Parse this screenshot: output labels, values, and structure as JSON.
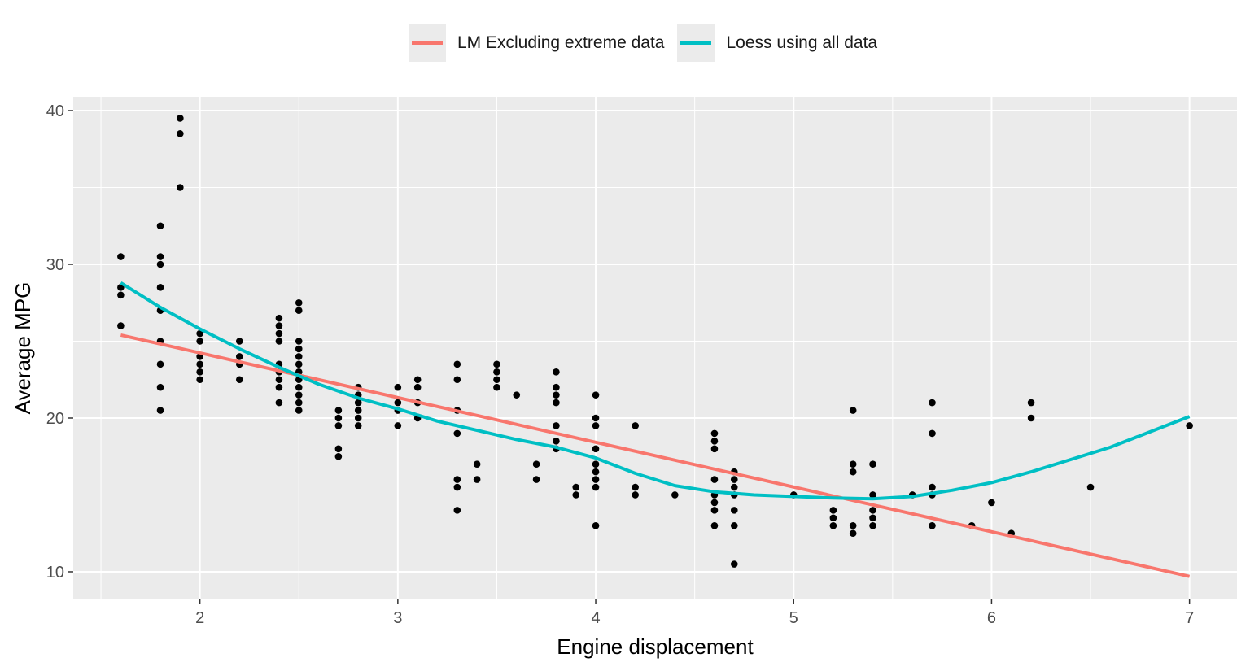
{
  "chart_data": {
    "type": "scatter",
    "xlabel": "Engine displacement",
    "ylabel": "Average MPG",
    "xlim": [
      1.36,
      7.24
    ],
    "ylim": [
      8.2,
      40.9
    ],
    "x_ticks": [
      2,
      3,
      4,
      5,
      6,
      7
    ],
    "y_ticks": [
      10,
      20,
      30,
      40
    ],
    "grid": true,
    "legend_position": "top",
    "points": [
      [
        1.6,
        30.5
      ],
      [
        1.6,
        28.5
      ],
      [
        1.6,
        28
      ],
      [
        1.6,
        26
      ],
      [
        1.8,
        32.5
      ],
      [
        1.8,
        30.5
      ],
      [
        1.8,
        30
      ],
      [
        1.8,
        28.5
      ],
      [
        1.8,
        27
      ],
      [
        1.8,
        25
      ],
      [
        1.8,
        23.5
      ],
      [
        1.8,
        22
      ],
      [
        1.8,
        20.5
      ],
      [
        1.9,
        39.5
      ],
      [
        1.9,
        38.5
      ],
      [
        1.9,
        35
      ],
      [
        2.0,
        25.5
      ],
      [
        2.0,
        25
      ],
      [
        2.0,
        24
      ],
      [
        2.0,
        23.5
      ],
      [
        2.0,
        23
      ],
      [
        2.0,
        22.5
      ],
      [
        2.2,
        25
      ],
      [
        2.2,
        24
      ],
      [
        2.2,
        23.5
      ],
      [
        2.2,
        22.5
      ],
      [
        2.4,
        26.5
      ],
      [
        2.4,
        26
      ],
      [
        2.4,
        25.5
      ],
      [
        2.4,
        25
      ],
      [
        2.4,
        23.5
      ],
      [
        2.4,
        23
      ],
      [
        2.4,
        22.5
      ],
      [
        2.4,
        22
      ],
      [
        2.4,
        21
      ],
      [
        2.5,
        27.5
      ],
      [
        2.5,
        27
      ],
      [
        2.5,
        25
      ],
      [
        2.5,
        24.5
      ],
      [
        2.5,
        24
      ],
      [
        2.5,
        23.5
      ],
      [
        2.5,
        23
      ],
      [
        2.5,
        22.5
      ],
      [
        2.5,
        22
      ],
      [
        2.5,
        21.5
      ],
      [
        2.5,
        21
      ],
      [
        2.5,
        20.5
      ],
      [
        2.7,
        20.5
      ],
      [
        2.7,
        20
      ],
      [
        2.7,
        19.5
      ],
      [
        2.7,
        18
      ],
      [
        2.7,
        17.5
      ],
      [
        2.8,
        22
      ],
      [
        2.8,
        21.5
      ],
      [
        2.8,
        21
      ],
      [
        2.8,
        20.5
      ],
      [
        2.8,
        20
      ],
      [
        2.8,
        19.5
      ],
      [
        3.0,
        22
      ],
      [
        3.0,
        21
      ],
      [
        3.0,
        20.5
      ],
      [
        3.0,
        19.5
      ],
      [
        3.1,
        22.5
      ],
      [
        3.1,
        22
      ],
      [
        3.1,
        21
      ],
      [
        3.1,
        20
      ],
      [
        3.3,
        23.5
      ],
      [
        3.3,
        22.5
      ],
      [
        3.3,
        20.5
      ],
      [
        3.3,
        19
      ],
      [
        3.3,
        16
      ],
      [
        3.3,
        15.5
      ],
      [
        3.3,
        14
      ],
      [
        3.4,
        17
      ],
      [
        3.4,
        16
      ],
      [
        3.5,
        23.5
      ],
      [
        3.5,
        23
      ],
      [
        3.5,
        22.5
      ],
      [
        3.5,
        22
      ],
      [
        3.6,
        21.5
      ],
      [
        3.7,
        17
      ],
      [
        3.7,
        16
      ],
      [
        3.8,
        23
      ],
      [
        3.8,
        22
      ],
      [
        3.8,
        21.5
      ],
      [
        3.8,
        21
      ],
      [
        3.8,
        19.5
      ],
      [
        3.8,
        18.5
      ],
      [
        3.8,
        18
      ],
      [
        3.9,
        15.5
      ],
      [
        3.9,
        15
      ],
      [
        4.0,
        21.5
      ],
      [
        4.0,
        20
      ],
      [
        4.0,
        19.5
      ],
      [
        4.0,
        18
      ],
      [
        4.0,
        17
      ],
      [
        4.0,
        16.5
      ],
      [
        4.0,
        16
      ],
      [
        4.0,
        15.5
      ],
      [
        4.0,
        13
      ],
      [
        4.2,
        19.5
      ],
      [
        4.2,
        15.5
      ],
      [
        4.2,
        15
      ],
      [
        4.4,
        15
      ],
      [
        4.6,
        19
      ],
      [
        4.6,
        18.5
      ],
      [
        4.6,
        18
      ],
      [
        4.6,
        16
      ],
      [
        4.6,
        15
      ],
      [
        4.6,
        14.5
      ],
      [
        4.6,
        14
      ],
      [
        4.6,
        13
      ],
      [
        4.7,
        16.5
      ],
      [
        4.7,
        16
      ],
      [
        4.7,
        15.5
      ],
      [
        4.7,
        15
      ],
      [
        4.7,
        14
      ],
      [
        4.7,
        13
      ],
      [
        4.7,
        10.5
      ],
      [
        5.0,
        15
      ],
      [
        5.2,
        14
      ],
      [
        5.2,
        13.5
      ],
      [
        5.2,
        13
      ],
      [
        5.3,
        20.5
      ],
      [
        5.3,
        17
      ],
      [
        5.3,
        16.5
      ],
      [
        5.3,
        13
      ],
      [
        5.3,
        12.5
      ],
      [
        5.4,
        17
      ],
      [
        5.4,
        15
      ],
      [
        5.4,
        14
      ],
      [
        5.4,
        13.5
      ],
      [
        5.4,
        13
      ],
      [
        5.6,
        15
      ],
      [
        5.7,
        21
      ],
      [
        5.7,
        19
      ],
      [
        5.7,
        15.5
      ],
      [
        5.7,
        15
      ],
      [
        5.7,
        13
      ],
      [
        5.9,
        13
      ],
      [
        6.0,
        14.5
      ],
      [
        6.1,
        12.5
      ],
      [
        6.2,
        21
      ],
      [
        6.2,
        20
      ],
      [
        6.5,
        15.5
      ],
      [
        7.0,
        19.5
      ]
    ],
    "series": [
      {
        "name": "LM Excluding extreme data",
        "color": "#F8766D",
        "x": [
          1.6,
          7.0
        ],
        "y": [
          25.4,
          9.7
        ]
      },
      {
        "name": "Loess using all data",
        "color": "#00BFC4",
        "x": [
          1.6,
          1.8,
          2.0,
          2.2,
          2.4,
          2.6,
          2.8,
          3.0,
          3.2,
          3.4,
          3.6,
          3.8,
          4.0,
          4.2,
          4.4,
          4.6,
          4.8,
          5.0,
          5.2,
          5.4,
          5.6,
          5.8,
          6.0,
          6.2,
          6.4,
          6.6,
          6.8,
          7.0
        ],
        "y": [
          28.8,
          27.2,
          25.8,
          24.5,
          23.3,
          22.2,
          21.3,
          20.6,
          19.8,
          19.2,
          18.6,
          18.1,
          17.4,
          16.4,
          15.6,
          15.2,
          15.0,
          14.9,
          14.8,
          14.75,
          14.9,
          15.3,
          15.8,
          16.5,
          17.3,
          18.1,
          19.1,
          20.1
        ]
      }
    ]
  }
}
